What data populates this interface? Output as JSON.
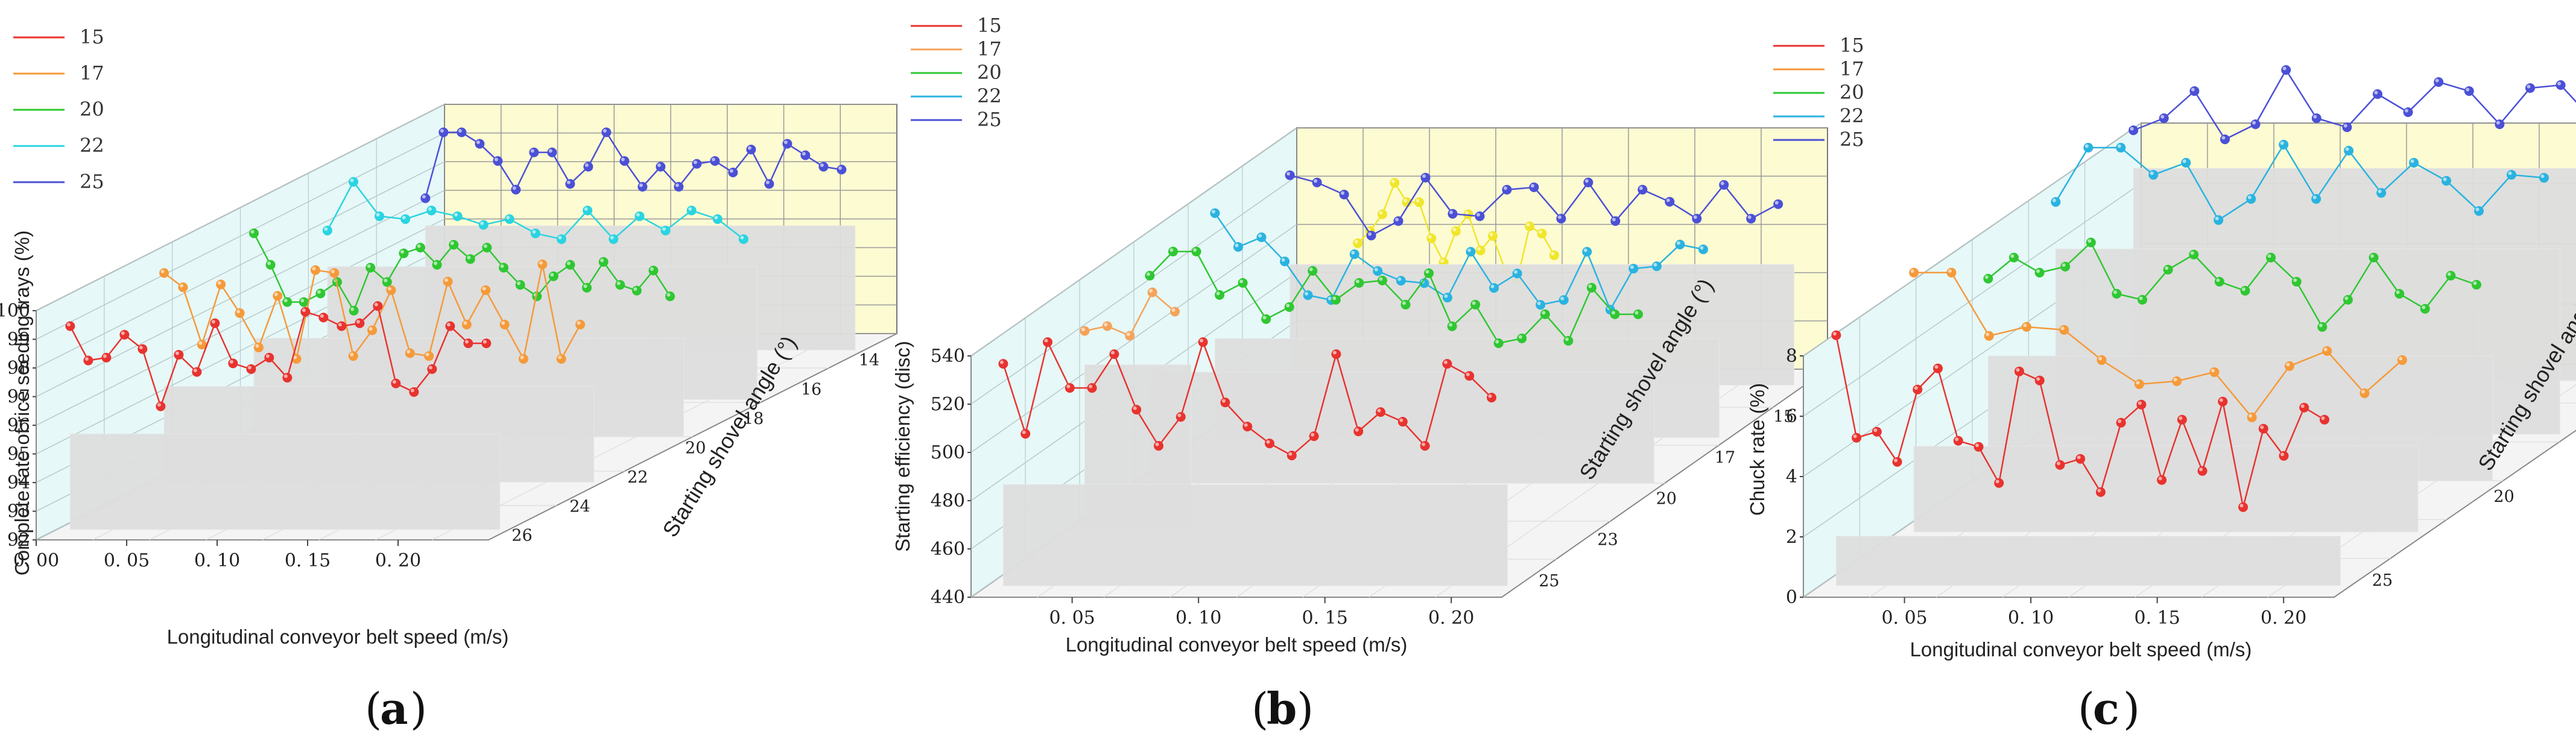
{
  "chart_data": [
    {
      "type": "line",
      "panel_label": "(a)",
      "xlabel": "Longitudinal conveyor belt speed (m/s)",
      "ylabel": "Complete rate of rice seeding trays (%)",
      "zlabel": "Starting shovel angle (°)",
      "x_ticks": [
        "0. 00",
        "0. 05",
        "0. 10",
        "0. 15",
        "0. 20"
      ],
      "y_ticks": [
        "92",
        "93",
        "94",
        "95",
        "96",
        "97",
        "98",
        "99",
        "100"
      ],
      "z_ticks": [
        "14",
        "16",
        "18",
        "20",
        "22",
        "24",
        "26"
      ],
      "ylim": [
        92,
        100
      ],
      "series": [
        {
          "name": "15",
          "color": "#e8332f",
          "values": [
            99.1,
            97.9,
            98.0,
            98.8,
            98.3,
            96.3,
            98.1,
            97.5,
            99.2,
            97.8,
            97.6,
            98.0,
            97.3,
            99.6,
            99.4,
            99.1,
            99.2,
            99.8,
            97.1,
            96.8,
            97.6,
            99.1,
            98.5,
            98.5
          ]
        },
        {
          "name": "17",
          "color": "#f59a3a",
          "values": [
            99.3,
            98.8,
            96.8,
            98.9,
            97.9,
            96.7,
            98.5,
            96.3,
            99.4,
            99.3,
            96.4,
            97.3,
            98.7,
            96.5,
            96.4,
            99.0,
            97.5,
            98.7,
            97.5,
            96.3,
            99.6,
            96.3,
            97.5
          ]
        },
        {
          "name": "20",
          "color": "#2fc732",
          "values": [
            99.1,
            98.0,
            96.7,
            96.7,
            97.0,
            97.4,
            96.4,
            97.9,
            97.4,
            98.4,
            98.6,
            98.0,
            98.7,
            98.2,
            98.6,
            97.9,
            97.3,
            96.9,
            97.6,
            98.0,
            97.2,
            98.1,
            97.3,
            97.1,
            97.8,
            96.9
          ]
        },
        {
          "name": "22",
          "color": "#2ad4e0",
          "values": [
            97.9,
            99.6,
            98.4,
            98.3,
            98.6,
            98.4,
            98.1,
            98.3,
            97.8,
            97.6,
            98.6,
            97.6,
            98.4,
            97.9,
            98.6,
            98.3,
            97.6
          ]
        },
        {
          "name": "25",
          "color": "#4b50d6",
          "values": [
            97.3,
            99.6,
            99.6,
            99.2,
            98.6,
            97.6,
            98.9,
            98.9,
            97.8,
            98.4,
            99.6,
            98.6,
            97.7,
            98.4,
            97.7,
            98.5,
            98.6,
            98.2,
            99.0,
            97.8,
            99.2,
            98.8,
            98.4,
            98.3
          ]
        }
      ],
      "legend": "top-left",
      "grid": true
    },
    {
      "type": "line",
      "panel_label": "(b)",
      "xlabel": "Longitudinal conveyor belt speed (m/s)",
      "ylabel": "Starting efficiency (disc)",
      "zlabel": "Starting shovel angle (°)",
      "x_ticks": [
        "0. 05",
        "0. 10",
        "0. 15",
        "0. 20"
      ],
      "y_ticks": [
        "440",
        "460",
        "480",
        "500",
        "520",
        "540"
      ],
      "z_ticks": [
        "15",
        "17",
        "20",
        "23",
        "25"
      ],
      "ylim": [
        440,
        540
      ],
      "series": [
        {
          "name": "15",
          "color": "#e8332f",
          "values": [
            532,
            503,
            541,
            522,
            522,
            536,
            513,
            498,
            510,
            541,
            516,
            506,
            499,
            494,
            502,
            536,
            504,
            512,
            508,
            498,
            532,
            527,
            518
          ]
        },
        {
          "name": "17",
          "color": "#f5a35a",
          "values": [
            522,
            524,
            520,
            538,
            530
          ]
        },
        {
          "name": "20",
          "color": "#2fc732",
          "values": [
            526,
            536,
            536,
            518,
            523,
            508,
            513,
            528,
            516,
            523,
            524,
            514,
            527,
            505,
            514,
            498,
            500,
            510,
            499,
            521,
            510,
            510
          ]
        },
        {
          "name": "22",
          "color": "#2ab3e0",
          "values": [
            533,
            519,
            523,
            513,
            499,
            497,
            516,
            509,
            505,
            504,
            498,
            517,
            502,
            508,
            495,
            497,
            517,
            493,
            510,
            511,
            520,
            518
          ]
        },
        {
          "name": "25",
          "color": "#4b50d6",
          "values": [
            527,
            524,
            519,
            502,
            508,
            526,
            511,
            510,
            521,
            522,
            509,
            524,
            508,
            521,
            516,
            509,
            523,
            509,
            515
          ]
        },
        {
          "name": "yellow",
          "color": "#f0e62a",
          "values": [
            513,
            518,
            525,
            538,
            530,
            530,
            515,
            505,
            518,
            525,
            510,
            516,
            502,
            498,
            520,
            517,
            508
          ]
        }
      ],
      "legend": "top-left",
      "grid": true
    },
    {
      "type": "line",
      "panel_label": "(c)",
      "xlabel": "Longitudinal conveyor belt speed (m/s)",
      "ylabel": "Chuck rate (%)",
      "zlabel": "Starting shovel angle (°)",
      "x_ticks": [
        "0. 05",
        "0. 10",
        "0. 15",
        "0. 20"
      ],
      "y_ticks": [
        "0",
        "2",
        "4",
        "6",
        "8"
      ],
      "z_ticks": [
        "15",
        "20",
        "25"
      ],
      "ylim": [
        0,
        8
      ],
      "series": [
        {
          "name": "15",
          "color": "#e8332f",
          "values": [
            8.3,
            4.9,
            5.1,
            4.1,
            6.5,
            7.2,
            4.8,
            4.6,
            3.4,
            7.1,
            6.8,
            4.0,
            4.2,
            3.1,
            5.4,
            6.0,
            3.5,
            5.5,
            3.8,
            6.1,
            2.6,
            5.2,
            4.3,
            5.9,
            5.5
          ]
        },
        {
          "name": "17",
          "color": "#f59a3a",
          "values": [
            8.6,
            8.6,
            6.5,
            6.8,
            6.7,
            5.7,
            4.9,
            5.0,
            5.3,
            3.8,
            5.5,
            6.0,
            4.6,
            5.7
          ]
        },
        {
          "name": "20",
          "color": "#2fc732",
          "values": [
            6.7,
            7.4,
            6.9,
            7.1,
            7.9,
            6.2,
            6.0,
            7.0,
            7.5,
            6.6,
            6.3,
            7.4,
            6.6,
            5.1,
            6.0,
            7.4,
            6.2,
            5.7,
            6.8,
            6.5
          ]
        },
        {
          "name": "22",
          "color": "#2ab3e0",
          "values": [
            7.7,
            9.5,
            9.5,
            8.6,
            9.0,
            7.1,
            7.8,
            9.6,
            7.8,
            9.4,
            8.0,
            9.0,
            8.4,
            7.4,
            8.6,
            8.5
          ]
        },
        {
          "name": "25",
          "color": "#4b50d6",
          "values": [
            8.3,
            8.7,
            9.6,
            8.0,
            8.5,
            10.3,
            8.7,
            8.4,
            9.5,
            8.9,
            9.9,
            9.6,
            8.5,
            9.7,
            9.8,
            8.7,
            9.1
          ]
        }
      ],
      "legend": "top-left",
      "grid": true
    }
  ]
}
